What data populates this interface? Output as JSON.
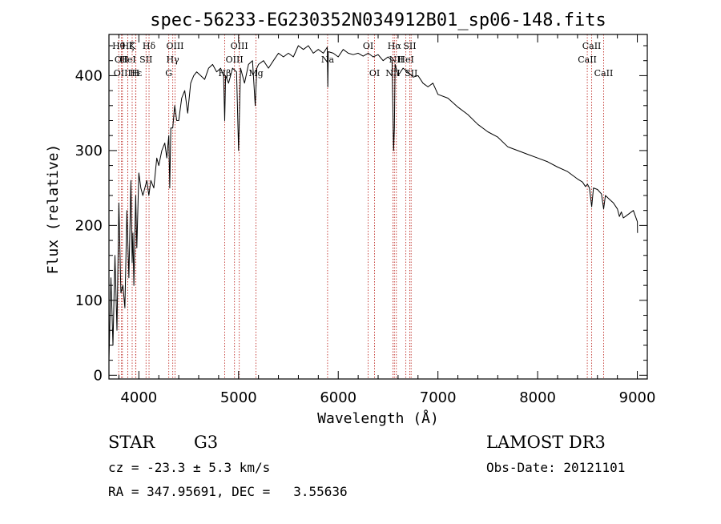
{
  "chart_data": {
    "type": "line",
    "title": "spec-56233-EG230352N034912B01_sp06-148.fits",
    "xlabel": "Wavelength (Å)",
    "ylabel": "Flux (relative)",
    "xlim": [
      3700,
      9100
    ],
    "ylim": [
      -5,
      455
    ],
    "xticks": [
      4000,
      5000,
      6000,
      7000,
      8000,
      9000
    ],
    "yticks": [
      0,
      100,
      200,
      300,
      400
    ],
    "grid": false,
    "series": [
      {
        "name": "flux",
        "x": [
          3700,
          3720,
          3740,
          3760,
          3780,
          3800,
          3820,
          3840,
          3860,
          3880,
          3900,
          3920,
          3933,
          3940,
          3950,
          3968,
          3980,
          4000,
          4020,
          4040,
          4060,
          4080,
          4100,
          4120,
          4150,
          4180,
          4200,
          4230,
          4260,
          4280,
          4300,
          4310,
          4320,
          4340,
          4360,
          4380,
          4400,
          4430,
          4460,
          4490,
          4520,
          4550,
          4580,
          4620,
          4660,
          4700,
          4740,
          4780,
          4820,
          4850,
          4861,
          4870,
          4900,
          4940,
          4980,
          5000,
          5020,
          5060,
          5100,
          5140,
          5167,
          5183,
          5200,
          5250,
          5300,
          5350,
          5400,
          5450,
          5500,
          5550,
          5600,
          5650,
          5700,
          5750,
          5800,
          5850,
          5890,
          5895,
          5900,
          5950,
          6000,
          6050,
          6100,
          6150,
          6200,
          6250,
          6300,
          6350,
          6400,
          6450,
          6500,
          6540,
          6555,
          6563,
          6570,
          6600,
          6650,
          6700,
          6750,
          6800,
          6850,
          6900,
          6950,
          7000,
          7100,
          7200,
          7300,
          7400,
          7500,
          7600,
          7700,
          7800,
          7900,
          8000,
          8100,
          8200,
          8300,
          8400,
          8450,
          8480,
          8500,
          8520,
          8542,
          8560,
          8600,
          8640,
          8662,
          8680,
          8720,
          8760,
          8800,
          8820,
          8840,
          8860,
          8880,
          8900,
          8960,
          9000,
          9002
        ],
        "y": [
          20,
          130,
          40,
          160,
          60,
          230,
          110,
          120,
          90,
          220,
          130,
          260,
          150,
          190,
          120,
          240,
          170,
          270,
          250,
          240,
          250,
          260,
          240,
          260,
          250,
          290,
          280,
          300,
          310,
          290,
          320,
          250,
          330,
          330,
          360,
          340,
          340,
          370,
          380,
          350,
          390,
          400,
          405,
          400,
          395,
          410,
          415,
          405,
          410,
          400,
          340,
          400,
          390,
          410,
          405,
          300,
          410,
          390,
          415,
          420,
          360,
          410,
          415,
          420,
          410,
          420,
          430,
          425,
          430,
          425,
          440,
          435,
          440,
          430,
          435,
          430,
          438,
          385,
          432,
          430,
          425,
          435,
          430,
          428,
          430,
          426,
          430,
          425,
          428,
          420,
          425,
          420,
          300,
          330,
          415,
          400,
          410,
          405,
          398,
          400,
          390,
          385,
          390,
          375,
          370,
          358,
          348,
          335,
          325,
          318,
          305,
          300,
          295,
          290,
          285,
          278,
          272,
          262,
          258,
          252,
          255,
          250,
          225,
          250,
          248,
          242,
          222,
          240,
          235,
          230,
          222,
          212,
          218,
          210,
          212,
          214,
          220,
          205,
          190
        ],
        "line_color": "#000000"
      }
    ],
    "line_markers": [
      {
        "wavelength": 3798,
        "label": "Hθ",
        "label_row": 1
      },
      {
        "wavelength": 3826,
        "label": "OII",
        "label_row": 2
      },
      {
        "wavelength": 3835,
        "label": "OIII",
        "label_row": 3
      },
      {
        "wavelength": 3889,
        "label": "Hζ",
        "label_row": 1
      },
      {
        "wavelength": 3889,
        "label": "HeI",
        "label_row": 2
      },
      {
        "wavelength": 3933,
        "label": "K",
        "label_row": 1
      },
      {
        "wavelength": 3968,
        "label": "H",
        "label_row": 3
      },
      {
        "wavelength": 3970,
        "label": "Hε",
        "label_row": 3
      },
      {
        "wavelength": 4072,
        "label": "SII",
        "label_row": 2
      },
      {
        "wavelength": 4102,
        "label": "Hδ",
        "label_row": 1
      },
      {
        "wavelength": 4300,
        "label": "G",
        "label_row": 3
      },
      {
        "wavelength": 4340,
        "label": "Hγ",
        "label_row": 2
      },
      {
        "wavelength": 4363,
        "label": "OIII",
        "label_row": 1
      },
      {
        "wavelength": 4861,
        "label": "Hβ",
        "label_row": 3
      },
      {
        "wavelength": 4959,
        "label": "OIII",
        "label_row": 2
      },
      {
        "wavelength": 5007,
        "label": "OIII",
        "label_row": 1
      },
      {
        "wavelength": 5175,
        "label": "Mg",
        "label_row": 3
      },
      {
        "wavelength": 5893,
        "label": "Na",
        "label_row": 2
      },
      {
        "wavelength": 6300,
        "label": "OI",
        "label_row": 1
      },
      {
        "wavelength": 6364,
        "label": "OI",
        "label_row": 3
      },
      {
        "wavelength": 6548,
        "label": "NII",
        "label_row": 3
      },
      {
        "wavelength": 6563,
        "label": "Hα",
        "label_row": 1
      },
      {
        "wavelength": 6583,
        "label": "NII",
        "label_row": 2
      },
      {
        "wavelength": 6678,
        "label": "HeI",
        "label_row": 2
      },
      {
        "wavelength": 6717,
        "label": "SII",
        "label_row": 1
      },
      {
        "wavelength": 6731,
        "label": "SII",
        "label_row": 3
      },
      {
        "wavelength": 8498,
        "label": "CaII",
        "label_row": 2
      },
      {
        "wavelength": 8542,
        "label": "CaII",
        "label_row": 1
      },
      {
        "wavelength": 8662,
        "label": "CaII",
        "label_row": 3
      }
    ],
    "marker_color": "#c0302a"
  },
  "info": {
    "object_class": "STAR",
    "subclass": "G3",
    "survey": "LAMOST DR3",
    "redshift_text": "cz = -23.3 ± 5.3 km/s",
    "obs_date_text": "Obs-Date: 20121101",
    "coord_text": "RA = 347.95691, DEC =   3.55636"
  }
}
